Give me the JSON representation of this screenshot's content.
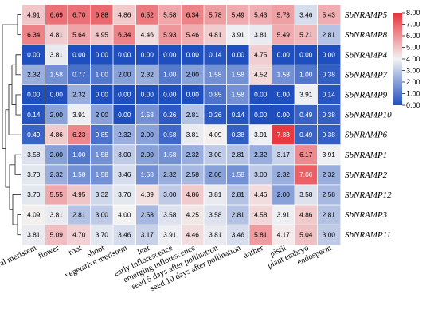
{
  "chart_data": {
    "type": "heatmap",
    "rows": [
      "SbNRAMP5",
      "SbNRAMP8",
      "SbNRAMP4",
      "SbNRAMP7",
      "SbNRAMP9",
      "SbNRAMP10",
      "SbNRAMP6",
      "SbNRAMP1",
      "SbNRAMP2",
      "SbNRAMP12",
      "SbNRAMP3",
      "SbNRAMP11"
    ],
    "columns": [
      "floral meristem",
      "flower",
      "root",
      "shoot",
      "vegetative meristem",
      "leaf",
      "early inflorescence",
      "emerging inflorescence",
      "seed 5 days after pollination",
      "seed 10 days after pollination",
      "anther",
      "pistil",
      "plant embryo",
      "endosperm"
    ],
    "values": [
      [
        "4.91",
        "6.69",
        "6.70",
        "6.88",
        "4.86",
        "6.52",
        "5.58",
        "6.34",
        "5.78",
        "5.49",
        "5.43",
        "5.73",
        "3.46",
        "5.43"
      ],
      [
        "6.34",
        "4.81",
        "5.64",
        "4.95",
        "6.34",
        "4.46",
        "5.93",
        "5.46",
        "4.81",
        "3.91",
        "3.81",
        "5.49",
        "5.21",
        "2.81"
      ],
      [
        "0.00",
        "3.81",
        "0.00",
        "0.00",
        "0.00",
        "0.00",
        "0.00",
        "0.00",
        "0.14",
        "0.00",
        "4.75",
        "0.00",
        "0.00",
        "0.00"
      ],
      [
        "2.32",
        "1.58",
        "0.77",
        "1.00",
        "2.00",
        "2.32",
        "1.00",
        "2.00",
        "1.58",
        "1.58",
        "4.52",
        "1.58",
        "1.00",
        "0.38"
      ],
      [
        "0.00",
        "0.00",
        "2.32",
        "0.00",
        "0.00",
        "0.00",
        "0.00",
        "0.00",
        "0.85",
        "1.58",
        "0.00",
        "0.00",
        "3.91",
        "0.14"
      ],
      [
        "0.14",
        "2.00",
        "3.91",
        "2.00",
        "0.00",
        "1.58",
        "0.26",
        "2.81",
        "0.26",
        "0.14",
        "0.00",
        "0.00",
        "0.49",
        "0.38"
      ],
      [
        "0.49",
        "4.86",
        "6.23",
        "0.85",
        "2.32",
        "2.00",
        "0.58",
        "3.81",
        "4.09",
        "0.38",
        "3.91",
        "7.88",
        "0.49",
        "0.38"
      ],
      [
        "3.58",
        "2.00",
        "1.00",
        "1.58",
        "3.00",
        "2.00",
        "1.58",
        "2.32",
        "3.00",
        "2.81",
        "2.32",
        "3.17",
        "6.17",
        "3.91"
      ],
      [
        "3.70",
        "2.32",
        "1.58",
        "1.58",
        "3.46",
        "1.58",
        "2.32",
        "2.58",
        "2.00",
        "1.58",
        "3.00",
        "2.32",
        "7.06",
        "2.32"
      ],
      [
        "3.70",
        "5.55",
        "4.95",
        "3.32",
        "3.70",
        "4.39",
        "3.00",
        "4.86",
        "3.81",
        "2.81",
        "4.46",
        "2.00",
        "3.58",
        "2.58"
      ],
      [
        "4.09",
        "3.81",
        "2.81",
        "3.00",
        "4.00",
        "2.58",
        "3.58",
        "4.25",
        "3.58",
        "2.81",
        "4.58",
        "3.91",
        "4.86",
        "2.81"
      ],
      [
        "3.81",
        "5.09",
        "4.70",
        "3.70",
        "3.46",
        "3.17",
        "3.91",
        "4.46",
        "3.81",
        "3.46",
        "5.81",
        "4.17",
        "5.04",
        "3.00"
      ]
    ],
    "colorbar": {
      "min": 0,
      "max": 8,
      "ticks": [
        "0.00",
        "1.00",
        "2.00",
        "3.00",
        "4.00",
        "5.00",
        "6.00",
        "7.00",
        "8.00"
      ],
      "colors": {
        "low": "#1f4fbf",
        "mid": "#f3f3f3",
        "high": "#e8323a"
      }
    },
    "dendrogram": {
      "side": "left",
      "leaf_order": [
        "SbNRAMP5",
        "SbNRAMP8",
        "SbNRAMP4",
        "SbNRAMP7",
        "SbNRAMP9",
        "SbNRAMP10",
        "SbNRAMP6",
        "SbNRAMP1",
        "SbNRAMP2",
        "SbNRAMP12",
        "SbNRAMP3",
        "SbNRAMP11"
      ]
    }
  }
}
